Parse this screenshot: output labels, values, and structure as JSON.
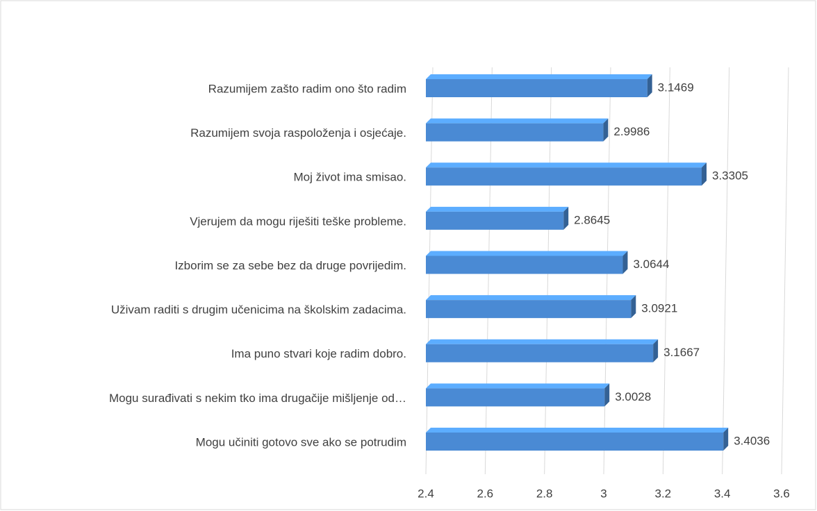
{
  "chart_data": {
    "type": "bar3d_horizontal",
    "categories": [
      "Razumijem zašto radim ono što radim",
      "Razumijem svoja raspoloženja i osjećaje.",
      "Moj život ima smisao.",
      "Vjerujem da mogu riješiti teške probleme.",
      "Izborim se za sebe bez da druge povrijedim.",
      "Uživam raditi s drugim učenicima na školskim zadacima.",
      "Ima puno stvari koje radim dobro.",
      "Mogu surađivati s nekim tko ima drugačije mišljenje od…",
      "Mogu učiniti gotovo sve ako se potrudim"
    ],
    "values": [
      3.1469,
      2.9986,
      3.3305,
      2.8645,
      3.0644,
      3.0921,
      3.1667,
      3.0028,
      3.4036
    ],
    "color": "#4a8ad4",
    "xlim": [
      2.4,
      3.6
    ],
    "xticks": [
      2.4,
      2.6,
      2.8,
      3,
      3.2,
      3.4,
      3.6
    ],
    "grid": true
  }
}
